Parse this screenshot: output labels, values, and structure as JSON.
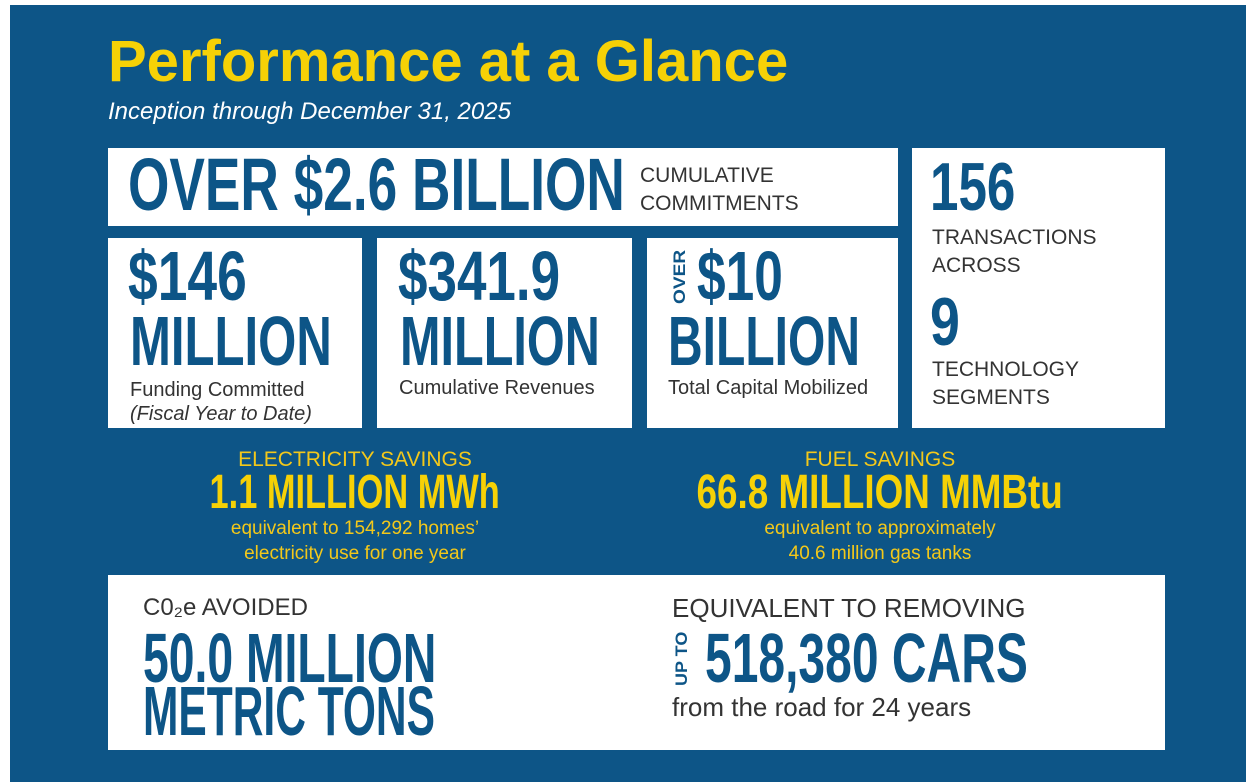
{
  "header": {
    "title": "Performance at a Glance",
    "subtitle": "Inception through December 31, 2025"
  },
  "headline": {
    "value": "OVER $2.6 BILLION",
    "label": [
      "CUMULATIVE",
      "COMMITMENTS"
    ]
  },
  "transactions": {
    "count": "156",
    "label": [
      "TRANSACTIONS",
      "ACROSS"
    ],
    "segments": "9",
    "segments_label": [
      "TECHNOLOGY",
      "SEGMENTS"
    ]
  },
  "cards": [
    {
      "value": "$146",
      "unit": "MILLION",
      "label": "Funding Committed",
      "note": "(Fiscal Year to Date)"
    },
    {
      "value": "$341.9",
      "unit": "MILLION",
      "label": "Cumulative Revenues"
    },
    {
      "prefix": "OVER",
      "value": "$10",
      "unit": "BILLION",
      "label": "Total Capital Mobilized"
    }
  ],
  "savings": [
    {
      "title": "ELECTRICITY SAVINGS",
      "value": "1.1 MILLION MWh",
      "note": [
        "equivalent to 154,292 homes’",
        "electricity use for one year"
      ]
    },
    {
      "title": "FUEL SAVINGS",
      "value": "66.8 MILLION MMBtu",
      "note": [
        "equivalent to approximately",
        "40.6 million gas tanks"
      ]
    }
  ],
  "impact": {
    "title": "C0₂e AVOIDED",
    "value": [
      "50.0 MILLION",
      "METRIC TONS"
    ],
    "equiv_title": "EQUIVALENT TO REMOVING",
    "prefix": "UP TO",
    "cars": "518,380 CARS",
    "equiv_note": "from the road for 24 years"
  }
}
